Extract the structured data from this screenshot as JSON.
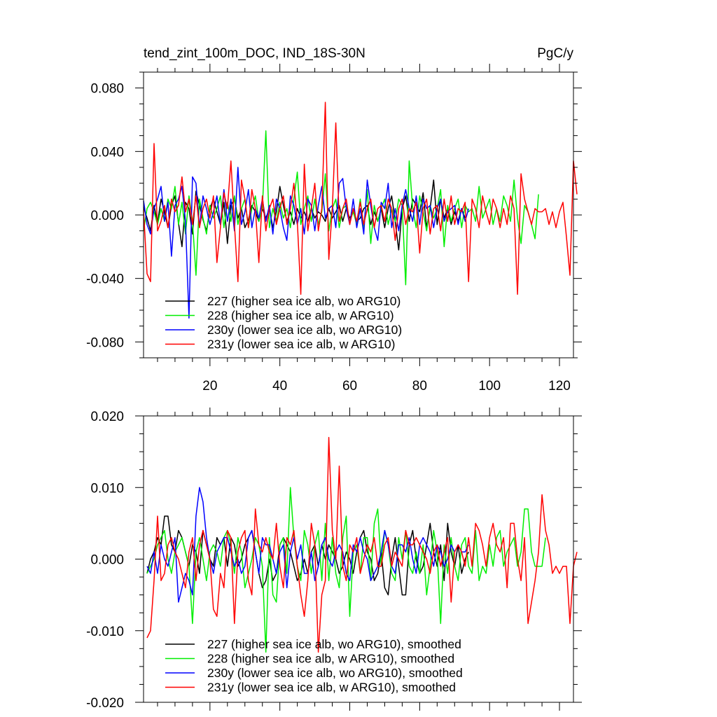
{
  "chart_data": [
    {
      "type": "line",
      "title": "tend_zint_100m_DOC, IND_18S-30N",
      "units_label": "PgC/y",
      "xlim": [
        1,
        124
      ],
      "ylim": [
        -0.09,
        0.09
      ],
      "xticks": [
        20,
        40,
        60,
        80,
        100,
        120
      ],
      "xtick_labels": [
        "20",
        "40",
        "60",
        "80",
        "100",
        "120"
      ],
      "yticks": [
        0.08,
        0.04,
        0.0,
        -0.04,
        -0.08
      ],
      "ytick_labels": [
        "0.080",
        "0.040",
        "0.000",
        "-0.040",
        "-0.080"
      ],
      "legend_position": "bottom-left",
      "series": [
        {
          "name": "227 (higher sea ice alb, wo ARG10)",
          "color": "#000000",
          "x_start": 1,
          "values": [
            0.005,
            -0.002,
            -0.01,
            0.006,
            -0.005,
            0.01,
            0.002,
            -0.008,
            0.006,
            0.012,
            -0.005,
            -0.02,
            0.008,
            0.004,
            -0.012,
            0.015,
            0.006,
            -0.003,
            -0.01,
            0.004,
            0.01,
            0.002,
            -0.006,
            0.008,
            -0.018,
            0.006,
            0.01,
            -0.002,
            0.004,
            -0.008,
            -0.003,
            0.006,
            0.002,
            -0.004,
            0.004,
            -0.002,
            0.004,
            -0.008,
            0.002,
            0.018,
            0.006,
            -0.004,
            0.002,
            -0.006,
            0.004,
            -0.002,
            0.002,
            -0.004,
            0.004,
            -0.002,
            0.002,
            0.0,
            -0.004,
            0.004,
            -0.002,
            0.002,
            0.006,
            -0.004,
            0.004,
            -0.002,
            0.002,
            -0.004,
            -0.002,
            0.004,
            0.006,
            -0.006,
            0.002,
            -0.004,
            0.004,
            -0.008,
            0.004,
            0.012,
            -0.004,
            -0.022,
            0.004,
            0.012,
            -0.004,
            0.01,
            0.006,
            0.002,
            0.014,
            -0.008,
            0.004,
            0.022,
            -0.006,
            0.01,
            -0.002,
            0.004,
            -0.006,
            0.002,
            -0.004,
            0.004,
            -0.002
          ]
        },
        {
          "name": "228 (higher sea ice alb, w ARG10)",
          "color": "#00ee00",
          "x_start": 1,
          "values": [
            -0.01,
            0.004,
            0.008,
            0.002,
            -0.006,
            0.004,
            -0.004,
            0.01,
            0.004,
            0.018,
            -0.006,
            0.008,
            -0.012,
            0.012,
            -0.004,
            -0.038,
            0.01,
            -0.002,
            -0.012,
            0.006,
            -0.002,
            0.004,
            0.012,
            -0.008,
            0.008,
            -0.004,
            0.012,
            -0.006,
            0.004,
            0.01,
            -0.008,
            0.004,
            0.012,
            -0.004,
            0.004,
            0.053,
            -0.008,
            0.004,
            -0.004,
            0.008,
            -0.002,
            0.004,
            -0.008,
            0.01,
            0.027,
            -0.006,
            0.004,
            0.012,
            -0.004,
            0.01,
            -0.006,
            0.002,
            0.026,
            -0.01,
            0.004,
            0.01,
            -0.008,
            0.004,
            0.006,
            -0.004,
            0.002,
            -0.006,
            0.01,
            -0.008,
            0.016,
            -0.018,
            0.006,
            -0.004,
            0.004,
            0.01,
            -0.006,
            0.004,
            -0.004,
            0.01,
            0.006,
            -0.044,
            0.034,
            0.004,
            -0.008,
            0.012,
            0.002,
            -0.01,
            0.006,
            -0.002,
            0.004,
            0.016,
            -0.02,
            0.006,
            -0.004,
            0.004,
            0.01,
            -0.008,
            0.006,
            0.002,
            0.004,
            -0.004,
            0.018,
            -0.002,
            0.004,
            0.01,
            -0.006,
            0.004,
            -0.004,
            0.012,
            0.006,
            -0.004,
            0.022,
            -0.002,
            -0.018,
            0.006,
            0.002,
            -0.006,
            -0.015,
            0.013
          ]
        },
        {
          "name": "230y (lower sea ice alb, wo ARG10)",
          "color": "#0000ff",
          "x_start": 1,
          "values": [
            0.009,
            -0.006,
            -0.012,
            0.004,
            0.01,
            0.018,
            -0.004,
            0.008,
            -0.026,
            0.006,
            0.01,
            0.018,
            -0.004,
            -0.065,
            0.024,
            0.02,
            -0.008,
            0.012,
            0.004,
            -0.006,
            0.002,
            0.012,
            -0.006,
            0.016,
            -0.004,
            0.01,
            -0.01,
            0.03,
            -0.006,
            0.002,
            0.016,
            -0.008,
            0.004,
            -0.002,
            0.01,
            -0.004,
            0.006,
            -0.012,
            0.01,
            0.004,
            -0.008,
            -0.016,
            0.012,
            0.006,
            -0.006,
            0.004,
            -0.012,
            0.01,
            0.006,
            -0.01,
            0.006,
            0.018,
            -0.002,
            0.004,
            0.006,
            -0.008,
            0.02,
            0.023,
            0.004,
            -0.006,
            0.01,
            -0.008,
            0.004,
            -0.012,
            0.022,
            0.006,
            -0.008,
            -0.016,
            0.008,
            0.004,
            0.02,
            -0.008,
            0.004,
            -0.01,
            0.006,
            0.016,
            0.004,
            -0.004,
            0.012,
            -0.006,
            0.01,
            0.004,
            0.006,
            -0.008,
            0.004,
            0.01,
            -0.004,
            0.002,
            0.004,
            0.006,
            -0.006,
            0.004,
            -0.004,
            0.004
          ]
        },
        {
          "name": "231y (lower sea ice alb, w ARG10)",
          "color": "#ff0000",
          "x_start": 1,
          "values": [
            0.003,
            -0.037,
            -0.042,
            0.045,
            -0.01,
            -0.004,
            0.006,
            -0.008,
            0.01,
            0.002,
            0.006,
            0.024,
            0.002,
            0.01,
            -0.006,
            0.012,
            -0.008,
            0.004,
            0.01,
            -0.002,
            0.012,
            -0.03,
            -0.008,
            0.014,
            0.004,
            0.034,
            -0.006,
            -0.042,
            0.022,
            0.01,
            -0.008,
            0.016,
            0.004,
            -0.03,
            0.012,
            -0.01,
            0.004,
            0.01,
            -0.006,
            0.004,
            0.012,
            -0.006,
            0.004,
            0.02,
            -0.004,
            -0.05,
            0.032,
            -0.01,
            0.004,
            0.02,
            -0.01,
            0.004,
            0.071,
            -0.028,
            0.004,
            0.058,
            -0.004,
            0.004,
            0.01,
            -0.006,
            0.004,
            -0.004,
            0.008,
            -0.006,
            0.004,
            0.01,
            -0.008,
            0.004,
            0.006,
            -0.004,
            0.01,
            0.004,
            -0.016,
            0.004,
            0.01,
            -0.006,
            0.004,
            0.002,
            0.008,
            -0.024,
            0.004,
            0.01,
            -0.012,
            0.004,
            0.006,
            -0.01,
            0.01,
            -0.004,
            0.012,
            -0.006,
            0.004,
            0.002,
            0.008,
            -0.042,
            0.01,
            0.004,
            -0.008,
            0.012,
            0.002,
            -0.006,
            0.01,
            0.004,
            -0.008,
            0.004,
            -0.006,
            0.012,
            0.004,
            -0.05,
            0.026,
            0.01,
            0.002,
            -0.006,
            0.004,
            0.002,
            0.002,
            0.004,
            -0.006,
            0.002,
            -0.008,
            0.002,
            0.008,
            -0.014,
            -0.038,
            0.034,
            0.013
          ]
        }
      ]
    },
    {
      "type": "line",
      "xlim": [
        1,
        124
      ],
      "ylim": [
        -0.02,
        0.02
      ],
      "xticks": [
        20,
        40,
        60,
        80,
        100,
        120
      ],
      "yticks": [
        0.02,
        0.01,
        0.0,
        -0.01,
        -0.02
      ],
      "ytick_labels": [
        "0.020",
        "0.010",
        "0.000",
        "-0.010",
        "-0.020"
      ],
      "legend_position": "bottom-left",
      "series": [
        {
          "name": "227 (higher sea ice alb, wo ARG10), smoothed",
          "color": "#000000",
          "x_start": 2,
          "values": [
            -0.002,
            0.0,
            0.001,
            0.003,
            0.002,
            0.006,
            0.006,
            0.002,
            0.001,
            0.004,
            0.003,
            0.001,
            -0.001,
            0.002,
            0.001,
            -0.002,
            0.004,
            0.002,
            0.0,
            -0.001,
            0.003,
            0.002,
            0.003,
            -0.001,
            0.003,
            0.002,
            -0.001,
            0.0,
            0.002,
            0.003,
            0.004,
            0.001,
            -0.002,
            -0.004,
            -0.003,
            0.0,
            -0.003,
            -0.002,
            0.002,
            0.003,
            0.002,
            0.001,
            -0.001,
            -0.003,
            -0.002,
            0.0,
            -0.002,
            0.001,
            0.002,
            -0.001,
            0.002,
            0.0,
            0.002,
            0.001,
            0.0,
            -0.002,
            -0.001,
            0.001,
            0.0,
            -0.002,
            0.001,
            0.003,
            0.004,
            0.001,
            0.0,
            -0.003,
            -0.002,
            0.001,
            -0.004,
            -0.005,
            0.0,
            0.003,
            -0.001,
            -0.005,
            -0.005,
            0.002,
            0.004,
            0.0,
            -0.002,
            -0.001,
            0.002,
            0.005,
            0.001,
            -0.001,
            0.002,
            -0.003,
            0.005,
            0.001,
            -0.001,
            0.002,
            -0.002,
            0.0,
            0.001
          ]
        },
        {
          "name": "228 (higher sea ice alb, w ARG10), smoothed",
          "color": "#00ee00",
          "x_start": 2,
          "values": [
            -0.002,
            -0.001,
            0.0,
            0.002,
            0.003,
            0.004,
            0.0,
            -0.002,
            0.001,
            0.002,
            0.003,
            0.001,
            -0.001,
            -0.009,
            0.001,
            0.003,
            0.0,
            -0.003,
            0.001,
            0.002,
            0.001,
            -0.001,
            0.003,
            0.004,
            0.002,
            -0.002,
            0.003,
            0.001,
            -0.004,
            -0.002,
            0.0,
            0.003,
            0.002,
            -0.001,
            -0.013,
            0.003,
            -0.005,
            -0.006,
            0.002,
            0.003,
            -0.002,
            0.01,
            0.003,
            -0.001,
            -0.003,
            0.004,
            0.002,
            -0.002,
            0.002,
            0.004,
            -0.003,
            0.005,
            -0.003,
            0.003,
            -0.002,
            -0.004,
            0.003,
            0.006,
            -0.008,
            0.001,
            0.002,
            -0.002,
            0.003,
            0.003,
            -0.003,
            0.005,
            0.007,
            -0.001,
            0.004,
            0.002,
            -0.002,
            -0.003,
            0.003,
            0.0,
            0.004,
            -0.001,
            -0.002,
            0.001,
            -0.002,
            0.002,
            -0.005,
            -0.001,
            0.004,
            0.001,
            -0.009,
            0.002,
            -0.002,
            0.003,
            -0.001,
            -0.003,
            0.002,
            0.003,
            -0.001,
            -0.002,
            0.004,
            -0.003,
            -0.001,
            -0.002,
            0.002,
            -0.001,
            0.003,
            0.004,
            -0.001,
            0.001,
            0.002,
            0.003,
            -0.001,
            0.001,
            0.007,
            0.007,
            0.001,
            -0.001,
            -0.001,
            -0.001,
            0.003
          ]
        },
        {
          "name": "230y (lower sea ice alb, wo ARG10), smoothed",
          "color": "#0000ff",
          "x_start": 2,
          "values": [
            -0.001,
            -0.002,
            0.001,
            -0.002,
            0.002,
            0.0,
            -0.001,
            0.001,
            0.003,
            -0.006,
            -0.004,
            -0.002,
            -0.003,
            -0.005,
            0.006,
            0.01,
            0.008,
            0.003,
            0.0,
            -0.002,
            0.001,
            0.002,
            0.003,
            0.003,
            0.001,
            -0.001,
            0.0,
            -0.002,
            -0.001,
            0.003,
            0.004,
            0.001,
            -0.002,
            0.003,
            0.002,
            0.002,
            0.0,
            -0.002,
            0.001,
            0.002,
            -0.004,
            0.001,
            0.003,
            0.0,
            0.002,
            -0.002,
            -0.002,
            0.001,
            -0.003,
            -0.001,
            0.002,
            0.003,
            0.0,
            -0.001,
            0.001,
            0.002,
            0.001,
            -0.002,
            -0.003,
            0.002,
            0.001,
            0.003,
            0.001,
            0.0,
            -0.003,
            -0.002,
            -0.001,
            0.001,
            0.004,
            0.002,
            -0.001,
            -0.002,
            0.002,
            0.002,
            0.001,
            0.003,
            0.0,
            -0.002,
            0.002,
            0.003,
            0.002,
            0.001,
            -0.001,
            0.002,
            0.001,
            -0.001,
            0.0,
            0.002,
            0.001,
            0.002,
            0.001,
            0.001,
            0.002
          ]
        },
        {
          "name": "231y (lower sea ice alb, w ARG10), smoothed",
          "color": "#ff0000",
          "x_start": 2,
          "values": [
            -0.011,
            -0.01,
            -0.003,
            0.006,
            -0.003,
            -0.002,
            0.002,
            0.003,
            0.001,
            0.0,
            -0.002,
            -0.004,
            0.001,
            0.003,
            -0.003,
            0.002,
            0.004,
            0.002,
            0.0,
            -0.007,
            -0.008,
            -0.002,
            -0.004,
            0.004,
            0.003,
            -0.009,
            0.001,
            0.003,
            0.004,
            -0.003,
            -0.005,
            0.007,
            0.002,
            0.001,
            0.003,
            0.001,
            0.0,
            0.005,
            -0.001,
            -0.004,
            0.003,
            0.002,
            0.004,
            -0.001,
            -0.005,
            -0.008,
            -0.003,
            0.005,
            0.002,
            -0.013,
            -0.005,
            -0.003,
            0.017,
            0.004,
            0.0,
            0.013,
            -0.001,
            -0.003,
            0.002,
            0.001,
            0.003,
            -0.002,
            0.0,
            0.002,
            0.001,
            0.003,
            -0.001,
            -0.001,
            0.002,
            0.003,
            -0.001,
            0.001,
            0.0,
            -0.001,
            0.004,
            0.002,
            0.002,
            0.003,
            0.002,
            0.001,
            0.0,
            -0.002,
            0.001,
            0.002,
            -0.001,
            0.001,
            0.003,
            -0.006,
            0.001,
            0.002,
            0.001,
            -0.001,
            0.003,
            -0.001,
            0.005,
            0.004,
            0.002,
            -0.001,
            0.003,
            0.005,
            0.002,
            0.001,
            0.003,
            -0.004,
            0.005,
            0.005,
            0.0,
            -0.003,
            0.003,
            -0.009,
            -0.006,
            -0.003,
            0.001,
            0.009,
            0.004,
            0.002,
            -0.002,
            -0.001,
            -0.002,
            -0.001,
            -0.001,
            -0.009,
            -0.001,
            0.001
          ]
        }
      ]
    }
  ]
}
